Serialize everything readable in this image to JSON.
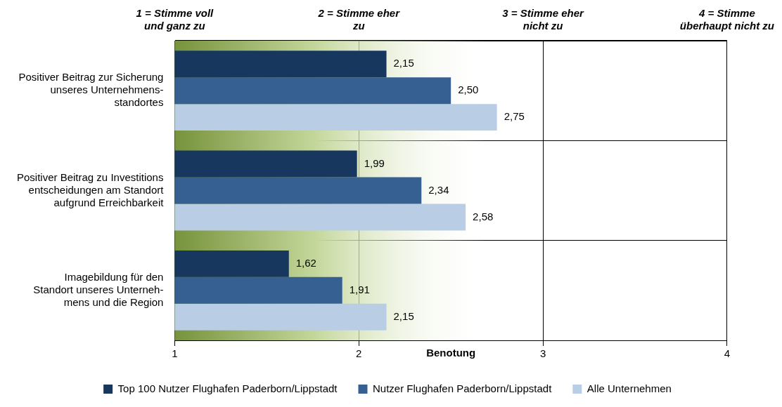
{
  "chart_data": {
    "type": "bar",
    "orientation": "horizontal",
    "xlabel": "Benotung",
    "categories": [
      "Positiver Beitrag zur Sicherung\nunseres Unternehmens-\nstandortes",
      "Positiver Beitrag zu Investitions\nentscheidungen am Standort\naufgrund Erreichbarkeit",
      "Imagebildung für den\nStandort unseres Unterneh-\nmens und die Region"
    ],
    "series": [
      {
        "name": "Top 100 Nutzer Flughafen Paderborn/Lippstadt",
        "color": "#17375e",
        "values": [
          2.15,
          1.99,
          1.62
        ],
        "value_labels": [
          "2,15",
          "1,99",
          "1,62"
        ]
      },
      {
        "name": "Nutzer Flughafen Paderborn/Lippstadt",
        "color": "#366092",
        "values": [
          2.5,
          2.34,
          1.91
        ],
        "value_labels": [
          "2,50",
          "2,34",
          "1,91"
        ]
      },
      {
        "name": "Alle Unternehmen",
        "color": "#b9cde5",
        "values": [
          2.75,
          2.58,
          2.15
        ],
        "value_labels": [
          "2,75",
          "2,58",
          "2,15"
        ]
      }
    ],
    "bands": [
      {
        "axis": "x",
        "from": 1,
        "to": 2.7,
        "color": "#77933c"
      }
    ],
    "xlim": [
      1,
      4
    ],
    "xticks": [
      1,
      2,
      3,
      4
    ],
    "x2lim": [
      1,
      4
    ],
    "x2ticks": [
      {
        "value": 1,
        "label": "1 = Stimme voll\nund ganz zu"
      },
      {
        "value": 2,
        "label": "2 = Stimme eher\nzu"
      },
      {
        "value": 3,
        "label": "3 = Stimme eher\nnicht zu"
      },
      {
        "value": 4,
        "label": "4 = Stimme\nüberhaupt nicht zu"
      }
    ],
    "grid": true,
    "legend": "bottom"
  }
}
